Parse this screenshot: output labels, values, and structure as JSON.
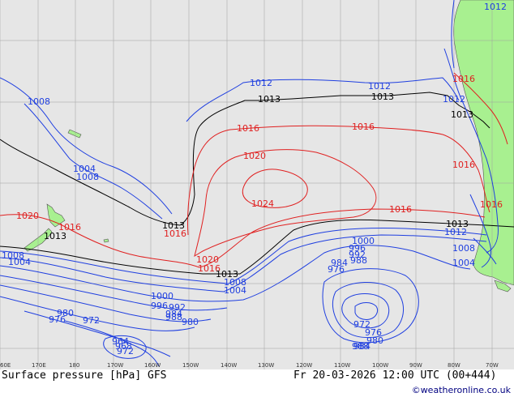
{
  "map": {
    "title": "Surface pressure [hPa] GFS",
    "valid_time": "Fr 20-03-2026 12:00 UTC (00+444)",
    "credit": "©weatheronline.co.uk",
    "colors": {
      "ocean": "#e6e6e6",
      "land": "#a8f090",
      "grid": "#a0a0a0",
      "low_isobar": "#1f3fe0",
      "high_isobar": "#e02020",
      "standard_isobar": "#000000"
    },
    "longitude_labels": [
      "60E",
      "170E",
      "180",
      "170W",
      "160W",
      "150W",
      "140W",
      "130W",
      "120W",
      "110W",
      "100W",
      "90W",
      "80W",
      "70W"
    ],
    "isobar_labels": [
      {
        "text": "1012",
        "color": "blue"
      },
      {
        "text": "1008",
        "color": "blue"
      },
      {
        "text": "1012",
        "color": "blue"
      },
      {
        "text": "1013",
        "color": "black"
      },
      {
        "text": "1012",
        "color": "blue"
      },
      {
        "text": "1013",
        "color": "black"
      },
      {
        "text": "1012",
        "color": "blue"
      },
      {
        "text": "1016",
        "color": "red"
      },
      {
        "text": "1013",
        "color": "black"
      },
      {
        "text": "1016",
        "color": "red"
      },
      {
        "text": "1016",
        "color": "red"
      },
      {
        "text": "1004",
        "color": "blue"
      },
      {
        "text": "1008",
        "color": "blue"
      },
      {
        "text": "1020",
        "color": "red"
      },
      {
        "text": "1016",
        "color": "red"
      },
      {
        "text": "1024",
        "color": "red"
      },
      {
        "text": "1016",
        "color": "red"
      },
      {
        "text": "1016",
        "color": "red"
      },
      {
        "text": "1020",
        "color": "red"
      },
      {
        "text": "1016",
        "color": "red"
      },
      {
        "text": "1013",
        "color": "black"
      },
      {
        "text": "1013",
        "color": "black"
      },
      {
        "text": "1016",
        "color": "red"
      },
      {
        "text": "1012",
        "color": "blue"
      },
      {
        "text": "1013",
        "color": "black"
      },
      {
        "text": "1008",
        "color": "blue"
      },
      {
        "text": "1004",
        "color": "blue"
      },
      {
        "text": "1000",
        "color": "blue"
      },
      {
        "text": "996",
        "color": "blue"
      },
      {
        "text": "992",
        "color": "blue"
      },
      {
        "text": "988",
        "color": "blue"
      },
      {
        "text": "984",
        "color": "blue"
      },
      {
        "text": "976",
        "color": "blue"
      },
      {
        "text": "1008",
        "color": "blue"
      },
      {
        "text": "1004",
        "color": "blue"
      },
      {
        "text": "1020",
        "color": "red"
      },
      {
        "text": "1016",
        "color": "red"
      },
      {
        "text": "1013",
        "color": "black"
      },
      {
        "text": "1008",
        "color": "blue"
      },
      {
        "text": "1004",
        "color": "blue"
      },
      {
        "text": "1000",
        "color": "blue"
      },
      {
        "text": "996",
        "color": "blue"
      },
      {
        "text": "992",
        "color": "blue"
      },
      {
        "text": "988",
        "color": "blue"
      },
      {
        "text": "984",
        "color": "blue"
      },
      {
        "text": "980",
        "color": "blue"
      },
      {
        "text": "980",
        "color": "blue"
      },
      {
        "text": "976",
        "color": "blue"
      },
      {
        "text": "972",
        "color": "blue"
      },
      {
        "text": "964",
        "color": "blue"
      },
      {
        "text": "968",
        "color": "blue"
      },
      {
        "text": "972",
        "color": "blue"
      },
      {
        "text": "972",
        "color": "blue"
      },
      {
        "text": "976",
        "color": "blue"
      },
      {
        "text": "980",
        "color": "blue"
      },
      {
        "text": "984",
        "color": "blue"
      },
      {
        "text": "988",
        "color": "blue"
      }
    ]
  }
}
